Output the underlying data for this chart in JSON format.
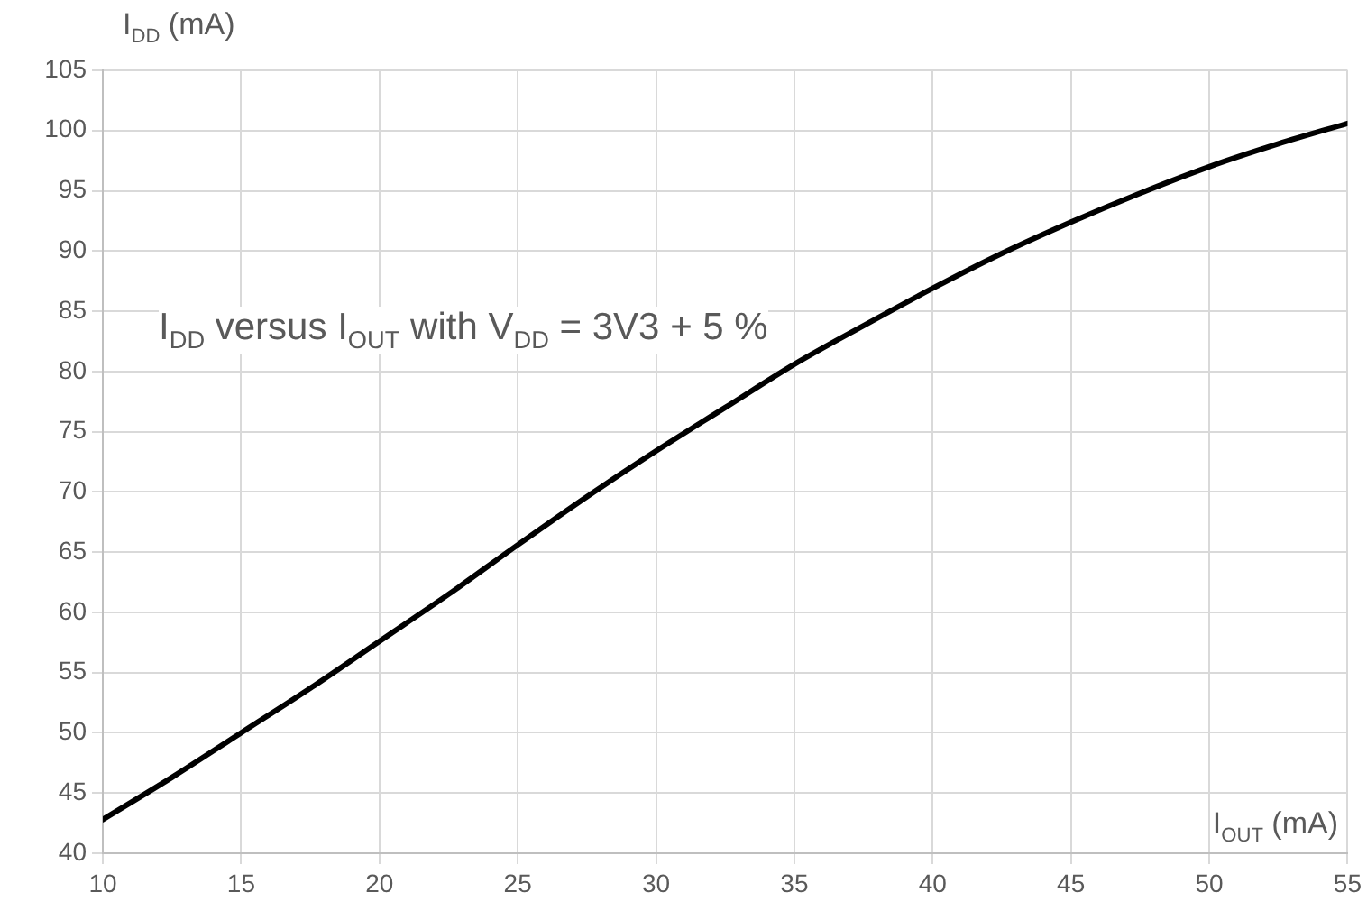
{
  "chart_data": {
    "type": "line",
    "xlabel": "I$_{OUT}$ (mA)",
    "ylabel": "I$_{DD}$  (mA)",
    "annotations": [
      "I$_{DD}$ versus I$_{OUT}$ with V$_{DD}$ = 3V3 + 5 %"
    ],
    "x": [
      10,
      12.5,
      15,
      17.5,
      20,
      22.5,
      25,
      27.5,
      30,
      32.5,
      35,
      37.5,
      40,
      42.5,
      45,
      47.5,
      50,
      52.5,
      55
    ],
    "series": [
      {
        "color": "#000000",
        "values": [
          42.8,
          46.3,
          50.0,
          53.7,
          57.6,
          61.5,
          65.6,
          69.6,
          73.4,
          77.0,
          80.6,
          83.8,
          86.9,
          89.8,
          92.4,
          94.8,
          97.0,
          98.9,
          100.6
        ]
      }
    ],
    "xlim": [
      10,
      55
    ],
    "xticks": [
      10,
      15,
      20,
      25,
      30,
      35,
      40,
      45,
      50,
      55
    ],
    "ylim": [
      40,
      105
    ],
    "yticks": [
      40,
      45,
      50,
      55,
      60,
      65,
      70,
      75,
      80,
      85,
      90,
      95,
      100,
      105
    ],
    "grid": true,
    "legend": false,
    "marker": "none",
    "line_style": "solid"
  }
}
